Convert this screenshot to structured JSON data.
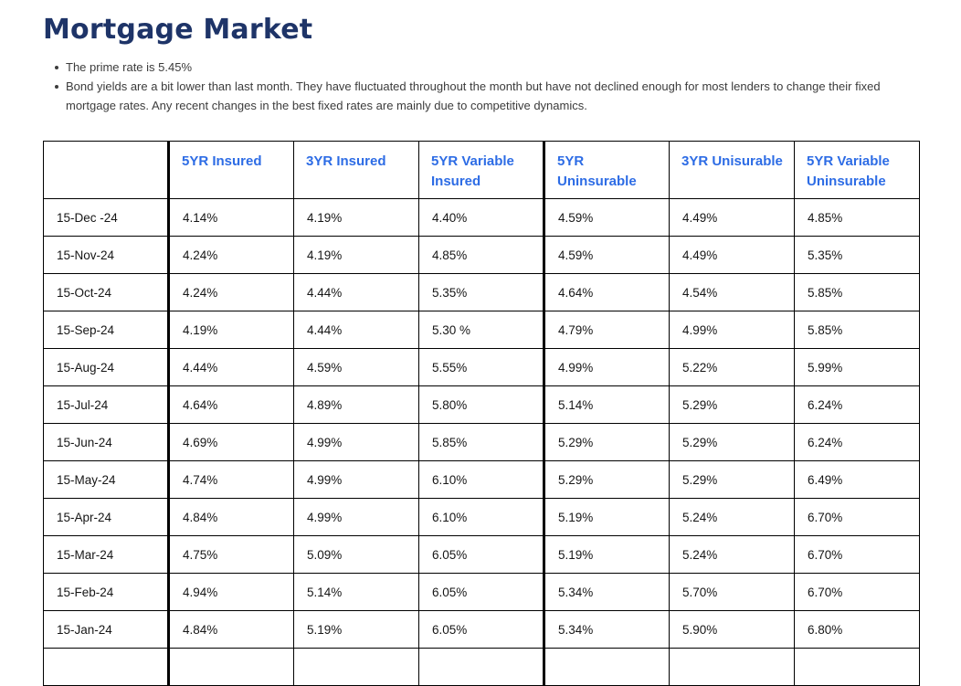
{
  "page": {
    "title": "Mortgage Market",
    "bullets": [
      "The prime rate is 5.45%",
      "Bond yields are a bit lower than last month. They have fluctuated throughout the month but have not declined enough for most lenders to change their fixed mortgage rates. Any recent changes in the best fixed rates are mainly due to competitive dynamics."
    ]
  },
  "colors": {
    "title_text": "#1e3468",
    "table_header_text": "#2d6ce5",
    "table_border": "#000000",
    "body_text": "#3c3c3c",
    "background": "#ffffff"
  },
  "table": {
    "headers": [
      "",
      "5YR Insured",
      "3YR Insured",
      "5YR Variable Insured",
      "5YR Uninsurable",
      "3YR Unisurable",
      "5YR Variable Uninsurable"
    ],
    "rows": [
      {
        "date": "15-Dec -24",
        "values": [
          "4.14%",
          "4.19%",
          "4.40%",
          "4.59%",
          "4.49%",
          "4.85%"
        ]
      },
      {
        "date": "15-Nov-24",
        "values": [
          "4.24%",
          "4.19%",
          "4.85%",
          "4.59%",
          "4.49%",
          "5.35%"
        ]
      },
      {
        "date": "15-Oct-24",
        "values": [
          "4.24%",
          "4.44%",
          "5.35%",
          "4.64%",
          "4.54%",
          "5.85%"
        ]
      },
      {
        "date": "15-Sep-24",
        "values": [
          "4.19%",
          "4.44%",
          "5.30 %",
          "4.79%",
          "4.99%",
          "5.85%"
        ]
      },
      {
        "date": "15-Aug-24",
        "values": [
          "4.44%",
          "4.59%",
          "5.55%",
          "4.99%",
          "5.22%",
          "5.99%"
        ]
      },
      {
        "date": "15-Jul-24",
        "values": [
          "4.64%",
          "4.89%",
          "5.80%",
          "5.14%",
          "5.29%",
          "6.24%"
        ]
      },
      {
        "date": "15-Jun-24",
        "values": [
          "4.69%",
          "4.99%",
          "5.85%",
          "5.29%",
          "5.29%",
          "6.24%"
        ]
      },
      {
        "date": "15-May-24",
        "values": [
          "4.74%",
          "4.99%",
          "6.10%",
          "5.29%",
          "5.29%",
          "6.49%"
        ]
      },
      {
        "date": "15-Apr-24",
        "values": [
          "4.84%",
          "4.99%",
          "6.10%",
          "5.19%",
          "5.24%",
          "6.70%"
        ]
      },
      {
        "date": "15-Mar-24",
        "values": [
          "4.75%",
          "5.09%",
          "6.05%",
          "5.19%",
          "5.24%",
          "6.70%"
        ]
      },
      {
        "date": "15-Feb-24",
        "values": [
          "4.94%",
          "5.14%",
          "6.05%",
          "5.34%",
          "5.70%",
          "6.70%"
        ]
      },
      {
        "date": "15-Jan-24",
        "values": [
          "4.84%",
          "5.19%",
          "6.05%",
          "5.34%",
          "5.90%",
          "6.80%"
        ]
      },
      {
        "date": "",
        "values": [
          "",
          "",
          "",
          "",
          "",
          ""
        ]
      }
    ]
  }
}
